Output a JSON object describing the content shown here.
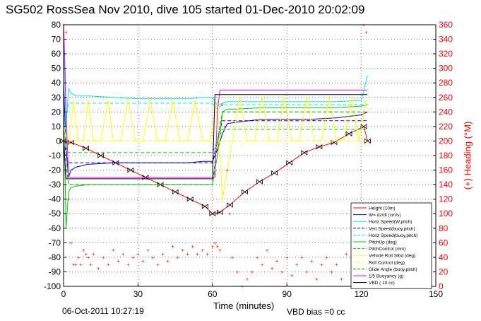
{
  "title": "SG502 RossSea Nov 2010, dive 105 started 01-Dec-2010 20:02:09",
  "timestamp": "06-Oct-2011 10:27:19",
  "vbd_bias": "VBD bias =0 cc",
  "colors": {
    "height": "#ff0000",
    "w": "#0000cc",
    "horz_speed": "#00e5ee",
    "pitch": "#00cc00",
    "roll": "#ffff00",
    "glide": "#00a000",
    "buoyancy": "#ff00ff",
    "vbd": "#000000",
    "heading": "#ff0000"
  },
  "chart_data": {
    "type": "line",
    "title": "SG502 RossSea Nov 2010, dive 105 started 01-Dec-2010 20:02:09",
    "xlabel": "Time (minutes)",
    "ylabel": "",
    "y2label": "(+) Heading (°M)",
    "xlim": [
      0,
      150
    ],
    "ylim": [
      -100,
      80
    ],
    "y2lim": [
      0,
      360
    ],
    "xticks": [
      0,
      30,
      60,
      90,
      120,
      150
    ],
    "yticks": [
      -100,
      -90,
      -80,
      -70,
      -60,
      -50,
      -40,
      -30,
      -20,
      -10,
      0,
      10,
      20,
      30,
      40,
      50,
      60,
      70,
      80
    ],
    "y2ticks": [
      0,
      20,
      40,
      60,
      80,
      100,
      120,
      140,
      160,
      180,
      200,
      220,
      240,
      260,
      280,
      300,
      320,
      340,
      360
    ],
    "grid": true,
    "legend_position": "bottom-right",
    "series": [
      {
        "name": "Height (10m)",
        "color": "#ff0000",
        "style": "solid",
        "marker": "triangle-pairs",
        "x": [
          0,
          3,
          9,
          15,
          21,
          27,
          33,
          39,
          45,
          51,
          57,
          60,
          63,
          67,
          73,
          79,
          85,
          91,
          97,
          103,
          109,
          115,
          121,
          122.5
        ],
        "y": [
          0,
          -1,
          -5,
          -10,
          -15,
          -20,
          -25,
          -30,
          -35,
          -40,
          -45,
          -50,
          -49,
          -44,
          -35,
          -28,
          -22,
          -15,
          -8,
          -4,
          -1,
          5,
          10,
          0
        ]
      },
      {
        "name": "W= dz/dt (cm/s)",
        "color": "#0000cc",
        "style": "solid",
        "x": [
          0,
          1,
          2,
          3,
          5,
          10,
          20,
          30,
          40,
          50,
          56,
          59,
          60,
          62,
          64,
          66,
          70,
          80,
          90,
          100,
          110,
          120,
          122.5
        ],
        "y": [
          40,
          -5,
          -25,
          -20,
          -18,
          -16,
          -15,
          -15,
          -15,
          -15,
          -14,
          -14,
          -14,
          -6,
          5,
          12,
          13,
          15,
          15,
          15,
          16,
          18,
          20
        ]
      },
      {
        "name": "Horiz Speed(W,pitch)",
        "color": "#00e5ee",
        "style": "solid",
        "x": [
          0,
          1,
          2,
          3,
          5,
          10,
          20,
          30,
          40,
          50,
          56,
          59,
          60,
          62,
          64,
          66,
          70,
          80,
          90,
          100,
          110,
          120,
          122.5
        ],
        "y": [
          70,
          10,
          36,
          33,
          31,
          31,
          30,
          29,
          29,
          29,
          30,
          30,
          30,
          24,
          26,
          27,
          27,
          27,
          27,
          27,
          27,
          28,
          45
        ]
      },
      {
        "name": "Vert Speed(buoy,pitch)",
        "color": "#0000cc",
        "style": "dashed",
        "x": [
          0,
          2,
          5,
          20,
          40,
          60,
          62,
          64,
          70,
          90,
          110,
          122.5
        ],
        "y": [
          0,
          -15,
          -15,
          -15,
          -15,
          -15,
          0,
          14,
          14,
          14,
          14,
          14
        ]
      },
      {
        "name": "Horiz Speed(buoy,pitch)",
        "color": "#00e5ee",
        "style": "dashed",
        "x": [
          0,
          2,
          5,
          20,
          40,
          60,
          62,
          64,
          70,
          90,
          110,
          122.5
        ],
        "y": [
          0,
          26,
          26,
          26,
          26,
          26,
          22,
          25,
          25,
          25,
          25,
          25
        ]
      },
      {
        "name": "PitchUp (deg)",
        "color": "#00cc00",
        "style": "solid",
        "x": [
          0,
          1,
          2,
          3,
          5,
          10,
          20,
          30,
          40,
          50,
          59,
          60,
          62,
          64,
          66,
          70,
          80,
          90,
          100,
          110,
          120,
          122.5
        ],
        "y": [
          30,
          -60,
          -35,
          -32,
          -31,
          -30,
          -30,
          -30,
          -30,
          -30,
          -30,
          -30,
          -10,
          20,
          22,
          22,
          23,
          23,
          23,
          23,
          24,
          25
        ]
      },
      {
        "name": "PitchControl (mm)",
        "color": "#00cc00",
        "style": "dashed",
        "x": [
          0,
          2,
          5,
          20,
          40,
          60,
          62,
          64,
          70,
          90,
          110,
          122.5
        ],
        "y": [
          0,
          -8,
          -8,
          -8,
          -8,
          -8,
          0,
          8,
          8,
          8,
          8,
          8
        ]
      },
      {
        "name": "Vehicle Roll Stbd (deg)",
        "color": "#ffff00",
        "style": "solid",
        "x": [
          0,
          2,
          4,
          6,
          8,
          10,
          12,
          15,
          18,
          20,
          23,
          26,
          29,
          32,
          35,
          38,
          41,
          44,
          47,
          50,
          53,
          56,
          59,
          62,
          64,
          66,
          68,
          71,
          74,
          77,
          80,
          83,
          86,
          89,
          92,
          95,
          98,
          101,
          104,
          107,
          110,
          113,
          116,
          119,
          122
        ],
        "y": [
          10,
          -5,
          28,
          0,
          0,
          28,
          0,
          0,
          28,
          0,
          0,
          28,
          0,
          0,
          28,
          0,
          0,
          28,
          0,
          0,
          28,
          0,
          0,
          28,
          -40,
          -20,
          0,
          30,
          0,
          0,
          30,
          0,
          0,
          30,
          0,
          0,
          30,
          0,
          0,
          30,
          0,
          0,
          30,
          0,
          28
        ]
      },
      {
        "name": "Roll Control (deg)",
        "color": "#ffff00",
        "style": "dashed",
        "x": [
          0,
          2,
          20,
          40,
          60,
          62,
          64,
          80,
          100,
          122.5
        ],
        "y": [
          0,
          0,
          0,
          0,
          0,
          0,
          0,
          0,
          0,
          0
        ]
      },
      {
        "name": "Glide Angle (buoy,pitch)",
        "color": "#00a000",
        "style": "dashed",
        "x": [
          0,
          2,
          5,
          20,
          40,
          60,
          62,
          64,
          70,
          90,
          110,
          122.5
        ],
        "y": [
          0,
          -30,
          -30,
          -30,
          -30,
          -30,
          0,
          20,
          20,
          20,
          20,
          20
        ]
      },
      {
        "name": "1/5 Buoyancy (g)",
        "color": "#ff00ff",
        "style": "solid",
        "x": [
          0,
          0.5,
          1,
          2,
          3,
          10,
          20,
          30,
          40,
          50,
          60,
          61,
          62,
          63,
          64,
          65,
          70,
          80,
          90,
          100,
          110,
          120,
          122.5
        ],
        "y": [
          80,
          55,
          20,
          -25,
          -25,
          -25,
          -25,
          -25,
          -25,
          -25,
          -25,
          -25,
          20,
          35,
          35,
          35,
          35,
          35,
          35,
          35,
          35,
          35,
          35
        ]
      },
      {
        "name": "VBD ( 10 cc)",
        "color": "#000000",
        "style": "solid",
        "x": [
          0,
          1,
          2,
          3,
          4,
          10,
          20,
          30,
          40,
          50,
          59,
          60,
          61,
          62,
          63,
          64,
          70,
          80,
          90,
          100,
          110,
          120,
          122.5
        ],
        "y": [
          0,
          -26,
          -26,
          -26,
          -26,
          -26,
          -26,
          -26,
          -26,
          -26,
          -26,
          -26,
          32,
          32,
          32,
          32,
          32,
          32,
          32,
          32,
          32,
          32,
          32
        ]
      },
      {
        "name": "Heading",
        "axis": "right",
        "color": "#ff0000",
        "style": "markers",
        "x": [
          0,
          1,
          2,
          3,
          4,
          5,
          6,
          7,
          8,
          9,
          10,
          11,
          12,
          14,
          16,
          18,
          20,
          22,
          24,
          26,
          28,
          30,
          32,
          34,
          36,
          38,
          40,
          42,
          44,
          46,
          48,
          50,
          52,
          54,
          56,
          58,
          60,
          61,
          62,
          63,
          64,
          65,
          66,
          67,
          68,
          70,
          72,
          74,
          76,
          78,
          80,
          82,
          84,
          86,
          88,
          90,
          92,
          94,
          96,
          98,
          100,
          102,
          104,
          106,
          108,
          110,
          112,
          114,
          116,
          118,
          120,
          121,
          122
        ],
        "y": [
          360,
          350,
          120,
          60,
          30,
          30,
          40,
          30,
          50,
          45,
          40,
          30,
          45,
          25,
          40,
          30,
          50,
          35,
          45,
          30,
          40,
          45,
          35,
          50,
          40,
          30,
          45,
          35,
          55,
          40,
          50,
          45,
          55,
          45,
          50,
          45,
          55,
          60,
          55,
          50,
          250,
          220,
          160,
          100,
          40,
          20,
          0,
          10,
          20,
          40,
          30,
          50,
          25,
          35,
          20,
          40,
          15,
          30,
          40,
          20,
          35,
          10,
          30,
          40,
          20,
          30,
          10,
          45,
          40,
          20,
          25,
          360,
          350
        ]
      }
    ]
  }
}
